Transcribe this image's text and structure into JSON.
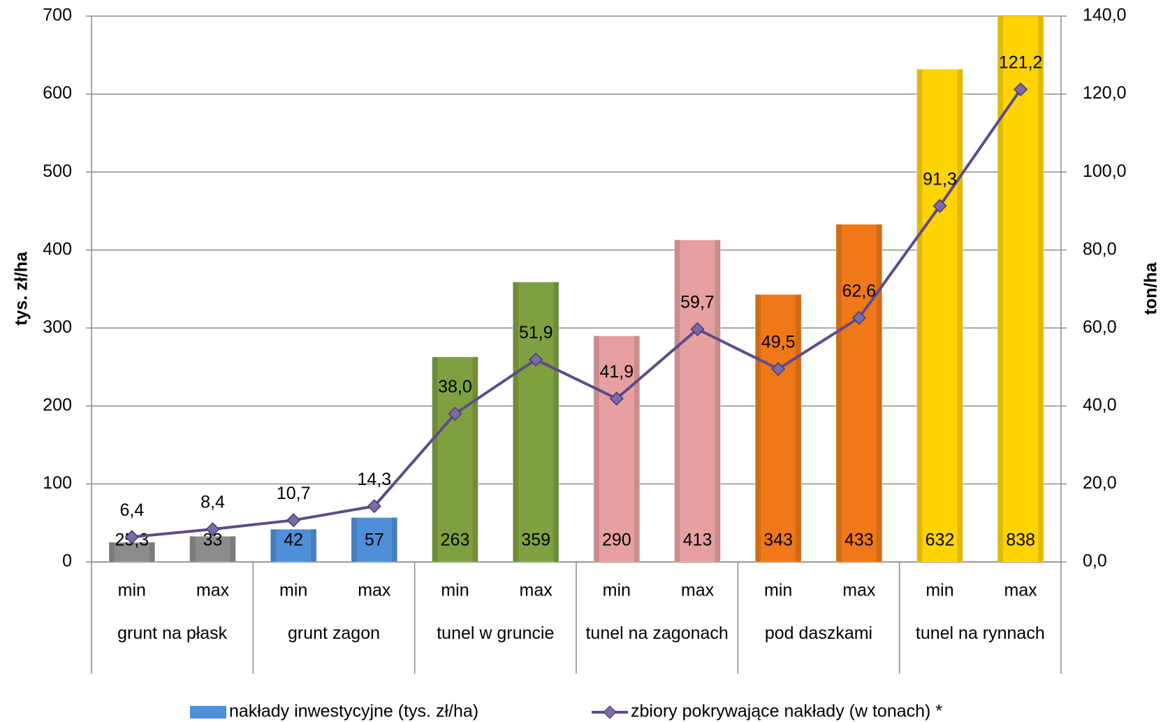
{
  "chart_data": {
    "type": "bar",
    "categories": [
      "min",
      "max",
      "min",
      "max",
      "min",
      "max",
      "min",
      "max",
      "min",
      "max",
      "min",
      "max"
    ],
    "groups": [
      "grunt na płask",
      "grunt zagon",
      "tunel w gruncie",
      "tunel na zagonach",
      "pod daszkami",
      "tunel na rynnach"
    ],
    "ylabel": "tys. zł/ha",
    "y2label": "ton/ha",
    "ylim": [
      0,
      700
    ],
    "yticks": [
      0,
      100,
      200,
      300,
      400,
      500,
      600,
      700
    ],
    "y2lim": [
      0,
      140
    ],
    "y2ticks": [
      {
        "value": 0,
        "label": "0,0"
      },
      {
        "value": 20,
        "label": "20,0"
      },
      {
        "value": 40,
        "label": "40,0"
      },
      {
        "value": 60,
        "label": "60,0"
      },
      {
        "value": 80,
        "label": "80,0"
      },
      {
        "value": 100,
        "label": "100,0"
      },
      {
        "value": 120,
        "label": "120,0"
      },
      {
        "value": 140,
        "label": "140,0"
      }
    ],
    "grid": true,
    "legend": "bottom",
    "series": [
      {
        "name": "nakłady inwestycyjne (tys. zł/ha)",
        "type": "bar",
        "color": "#4f8fd9",
        "colors": [
          "#8c8c8c",
          "#8c8c8c",
          "#4f8fd9",
          "#4f8fd9",
          "#7fa040",
          "#7fa040",
          "#e6a0a0",
          "#e6a0a0",
          "#f07818",
          "#f07818",
          "#ffd400",
          "#ffd400"
        ],
        "values": [
          25.3,
          33,
          42,
          57,
          263,
          359,
          290,
          413,
          343,
          433,
          632,
          838
        ],
        "value_labels": [
          "25,3",
          "33",
          "42",
          "57",
          "263",
          "359",
          "290",
          "413",
          "343",
          "433",
          "632",
          "838"
        ]
      },
      {
        "name": "zbiory pokrywające nakłady (w tonach) *",
        "type": "line",
        "axis": "y2",
        "color": "#5e4a8a",
        "values": [
          6.4,
          8.4,
          10.7,
          14.3,
          38.0,
          51.9,
          41.9,
          59.7,
          49.5,
          62.6,
          91.3,
          121.2
        ],
        "value_labels": [
          "6,4",
          "8,4",
          "10,7",
          "14,3",
          "38,0",
          "51,9",
          "41,9",
          "59,7",
          "49,5",
          "62,6",
          "91,3",
          "121,2"
        ]
      }
    ]
  }
}
